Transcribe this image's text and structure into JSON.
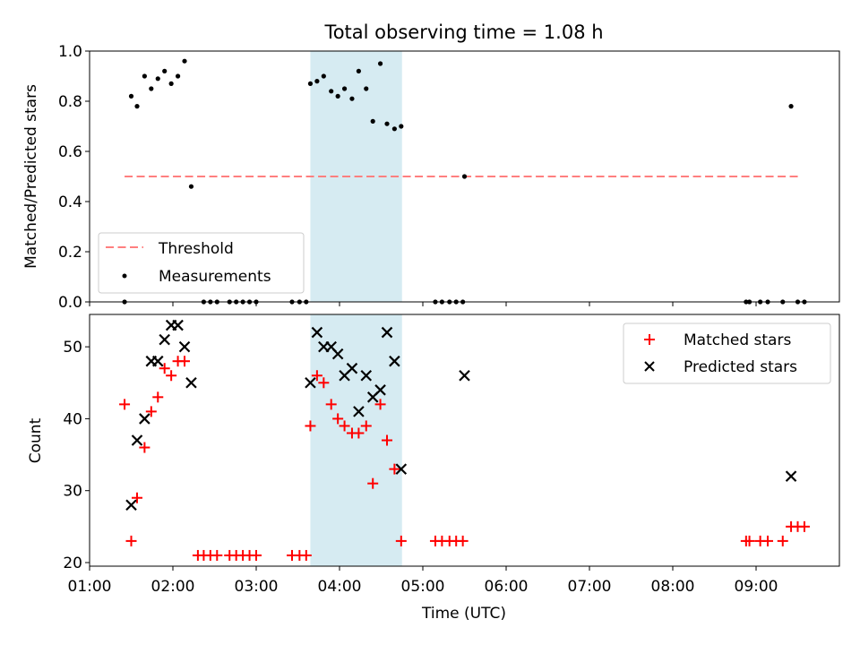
{
  "chart_data": {
    "title": "Total observing time = 1.08 h",
    "xlabel": "Time (UTC)",
    "x_unit": "hours UTC",
    "xlim": [
      1.0,
      10.0
    ],
    "x_ticks": [
      {
        "value": 1,
        "label": "01:00"
      },
      {
        "value": 2,
        "label": "02:00"
      },
      {
        "value": 3,
        "label": "03:00"
      },
      {
        "value": 4,
        "label": "04:00"
      },
      {
        "value": 5,
        "label": "05:00"
      },
      {
        "value": 6,
        "label": "06:00"
      },
      {
        "value": 7,
        "label": "07:00"
      },
      {
        "value": 8,
        "label": "08:00"
      },
      {
        "value": 9,
        "label": "09:00"
      }
    ],
    "shaded_interval": {
      "x0": 3.65,
      "x1": 4.75,
      "color": "#add8e6"
    },
    "panels": [
      {
        "type": "scatter",
        "ylabel": "Matched/Predicted stars",
        "ylim": [
          0,
          1.0
        ],
        "y_ticks": [
          {
            "value": 0.0,
            "label": "0.0"
          },
          {
            "value": 0.2,
            "label": "0.2"
          },
          {
            "value": 0.4,
            "label": "0.4"
          },
          {
            "value": 0.6,
            "label": "0.6"
          },
          {
            "value": 0.8,
            "label": "0.8"
          },
          {
            "value": 1.0,
            "label": "1.0"
          }
        ],
        "legend_position": "lower-left",
        "threshold": {
          "name": "Threshold",
          "y": 0.5,
          "x_range": [
            1.42,
            9.52
          ],
          "color": "#ff7f7f"
        },
        "series": [
          {
            "name": "Measurements",
            "marker": "dot",
            "color": "#000000",
            "points": [
              [
                1.42,
                0.0
              ],
              [
                1.5,
                0.82
              ],
              [
                1.57,
                0.78
              ],
              [
                1.66,
                0.9
              ],
              [
                1.74,
                0.85
              ],
              [
                1.82,
                0.89
              ],
              [
                1.9,
                0.92
              ],
              [
                1.98,
                0.87
              ],
              [
                2.06,
                0.9
              ],
              [
                2.14,
                0.96
              ],
              [
                2.22,
                0.46
              ],
              [
                2.37,
                0.0
              ],
              [
                2.45,
                0.0
              ],
              [
                2.53,
                0.0
              ],
              [
                2.68,
                0.0
              ],
              [
                2.76,
                0.0
              ],
              [
                2.84,
                0.0
              ],
              [
                2.92,
                0.0
              ],
              [
                3.0,
                0.0
              ],
              [
                3.43,
                0.0
              ],
              [
                3.52,
                0.0
              ],
              [
                3.6,
                0.0
              ],
              [
                3.65,
                0.87
              ],
              [
                3.73,
                0.88
              ],
              [
                3.81,
                0.9
              ],
              [
                3.9,
                0.84
              ],
              [
                3.98,
                0.82
              ],
              [
                4.06,
                0.85
              ],
              [
                4.15,
                0.81
              ],
              [
                4.23,
                0.92
              ],
              [
                4.32,
                0.85
              ],
              [
                4.4,
                0.72
              ],
              [
                4.49,
                0.95
              ],
              [
                4.57,
                0.71
              ],
              [
                4.66,
                0.69
              ],
              [
                4.74,
                0.7
              ],
              [
                5.15,
                0.0
              ],
              [
                5.23,
                0.0
              ],
              [
                5.32,
                0.0
              ],
              [
                5.4,
                0.0
              ],
              [
                5.48,
                0.0
              ],
              [
                5.5,
                0.5
              ],
              [
                8.88,
                0.0
              ],
              [
                8.92,
                0.0
              ],
              [
                9.05,
                0.0
              ],
              [
                9.14,
                0.0
              ],
              [
                9.32,
                0.0
              ],
              [
                9.42,
                0.78
              ],
              [
                9.5,
                0.0
              ],
              [
                9.58,
                0.0
              ]
            ]
          }
        ]
      },
      {
        "type": "scatter",
        "ylabel": "Count",
        "ylim": [
          19.5,
          54.5
        ],
        "y_ticks": [
          {
            "value": 20,
            "label": "20"
          },
          {
            "value": 30,
            "label": "30"
          },
          {
            "value": 40,
            "label": "40"
          },
          {
            "value": 50,
            "label": "50"
          }
        ],
        "legend_position": "upper-right",
        "series": [
          {
            "name": "Matched stars",
            "marker": "plus",
            "color": "#ff0000",
            "points": [
              [
                1.42,
                42
              ],
              [
                1.5,
                23
              ],
              [
                1.57,
                29
              ],
              [
                1.66,
                36
              ],
              [
                1.74,
                41
              ],
              [
                1.82,
                43
              ],
              [
                1.9,
                47
              ],
              [
                1.98,
                46
              ],
              [
                2.06,
                48
              ],
              [
                2.14,
                48
              ],
              [
                2.3,
                21
              ],
              [
                2.37,
                21
              ],
              [
                2.45,
                21
              ],
              [
                2.53,
                21
              ],
              [
                2.68,
                21
              ],
              [
                2.76,
                21
              ],
              [
                2.84,
                21
              ],
              [
                2.92,
                21
              ],
              [
                3.0,
                21
              ],
              [
                3.43,
                21
              ],
              [
                3.52,
                21
              ],
              [
                3.6,
                21
              ],
              [
                3.65,
                39
              ],
              [
                3.73,
                46
              ],
              [
                3.81,
                45
              ],
              [
                3.9,
                42
              ],
              [
                3.98,
                40
              ],
              [
                4.06,
                39
              ],
              [
                4.15,
                38
              ],
              [
                4.23,
                38
              ],
              [
                4.32,
                39
              ],
              [
                4.4,
                31
              ],
              [
                4.49,
                42
              ],
              [
                4.57,
                37
              ],
              [
                4.66,
                33
              ],
              [
                4.74,
                23
              ],
              [
                5.15,
                23
              ],
              [
                5.23,
                23
              ],
              [
                5.32,
                23
              ],
              [
                5.4,
                23
              ],
              [
                5.48,
                23
              ],
              [
                8.88,
                23
              ],
              [
                8.92,
                23
              ],
              [
                9.05,
                23
              ],
              [
                9.14,
                23
              ],
              [
                9.32,
                23
              ],
              [
                9.42,
                25
              ],
              [
                9.5,
                25
              ],
              [
                9.58,
                25
              ]
            ]
          },
          {
            "name": "Predicted stars",
            "marker": "x",
            "color": "#000000",
            "points": [
              [
                1.5,
                28
              ],
              [
                1.57,
                37
              ],
              [
                1.66,
                40
              ],
              [
                1.74,
                48
              ],
              [
                1.82,
                48
              ],
              [
                1.9,
                51
              ],
              [
                1.98,
                53
              ],
              [
                2.06,
                53
              ],
              [
                2.14,
                50
              ],
              [
                2.22,
                45
              ],
              [
                3.65,
                45
              ],
              [
                3.73,
                52
              ],
              [
                3.81,
                50
              ],
              [
                3.9,
                50
              ],
              [
                3.98,
                49
              ],
              [
                4.06,
                46
              ],
              [
                4.15,
                47
              ],
              [
                4.23,
                41
              ],
              [
                4.32,
                46
              ],
              [
                4.4,
                43
              ],
              [
                4.49,
                44
              ],
              [
                4.57,
                52
              ],
              [
                4.66,
                48
              ],
              [
                4.74,
                33
              ],
              [
                5.5,
                46
              ],
              [
                9.42,
                32
              ]
            ]
          }
        ]
      }
    ]
  }
}
